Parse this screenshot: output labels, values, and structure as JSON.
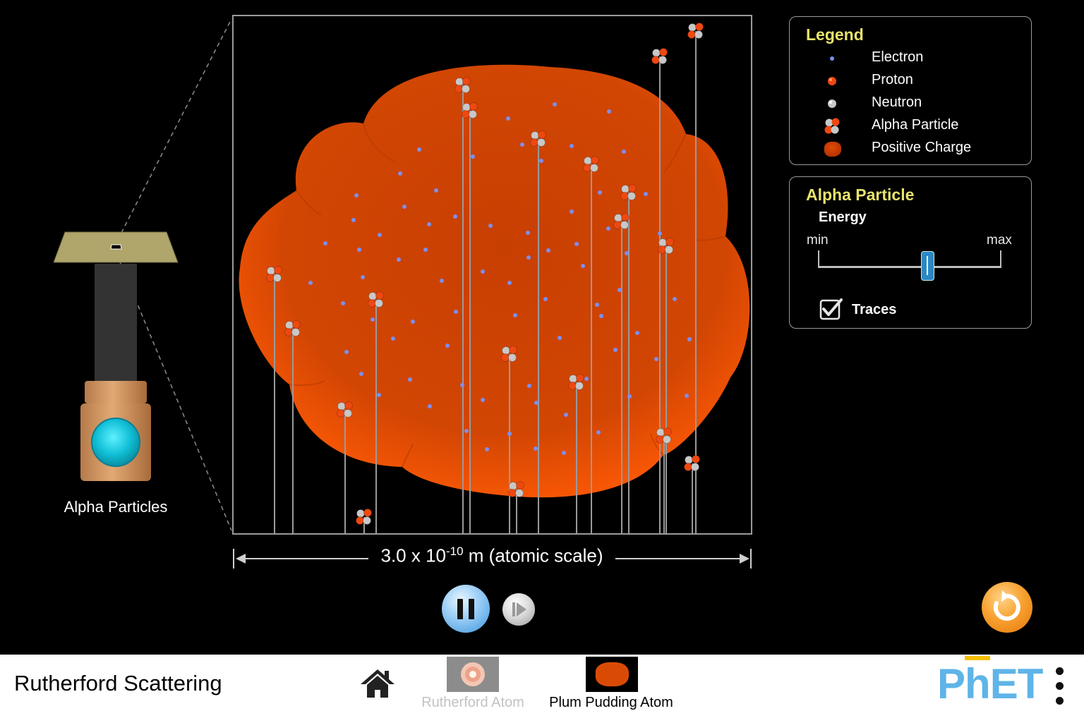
{
  "legend": {
    "title": "Legend",
    "items": [
      {
        "label": "Electron",
        "icon": "electron-icon"
      },
      {
        "label": "Proton",
        "icon": "proton-icon"
      },
      {
        "label": "Neutron",
        "icon": "neutron-icon"
      },
      {
        "label": "Alpha Particle",
        "icon": "alpha-particle-icon"
      },
      {
        "label": "Positive Charge",
        "icon": "positive-charge-icon"
      }
    ]
  },
  "alpha_panel": {
    "title": "Alpha Particle",
    "energy_label": "Energy",
    "min_label": "min",
    "max_label": "max",
    "energy_level": 0.6,
    "traces_label": "Traces",
    "traces_checked": true
  },
  "gun": {
    "label": "Alpha Particles"
  },
  "scale": {
    "base": "3.0 x 10",
    "exponent": "-10",
    "suffix": " m (atomic scale)"
  },
  "controls": {
    "playing": true
  },
  "navbar": {
    "title": "Rutherford Scattering",
    "tabs": [
      {
        "label": "Rutherford Atom",
        "selected": false
      },
      {
        "label": "Plum Pudding Atom",
        "selected": true
      }
    ],
    "logo": "PhET"
  },
  "colors": {
    "panel_title": "#e8e36c",
    "pudding": "#d94b05",
    "electron": "#7b8ff0",
    "proton": "#ee4811",
    "neutron": "#c8c8c8",
    "trace": "#9a9a9a",
    "logo_blue": "#5fb4e8",
    "logo_yellow": "#f7c000"
  }
}
